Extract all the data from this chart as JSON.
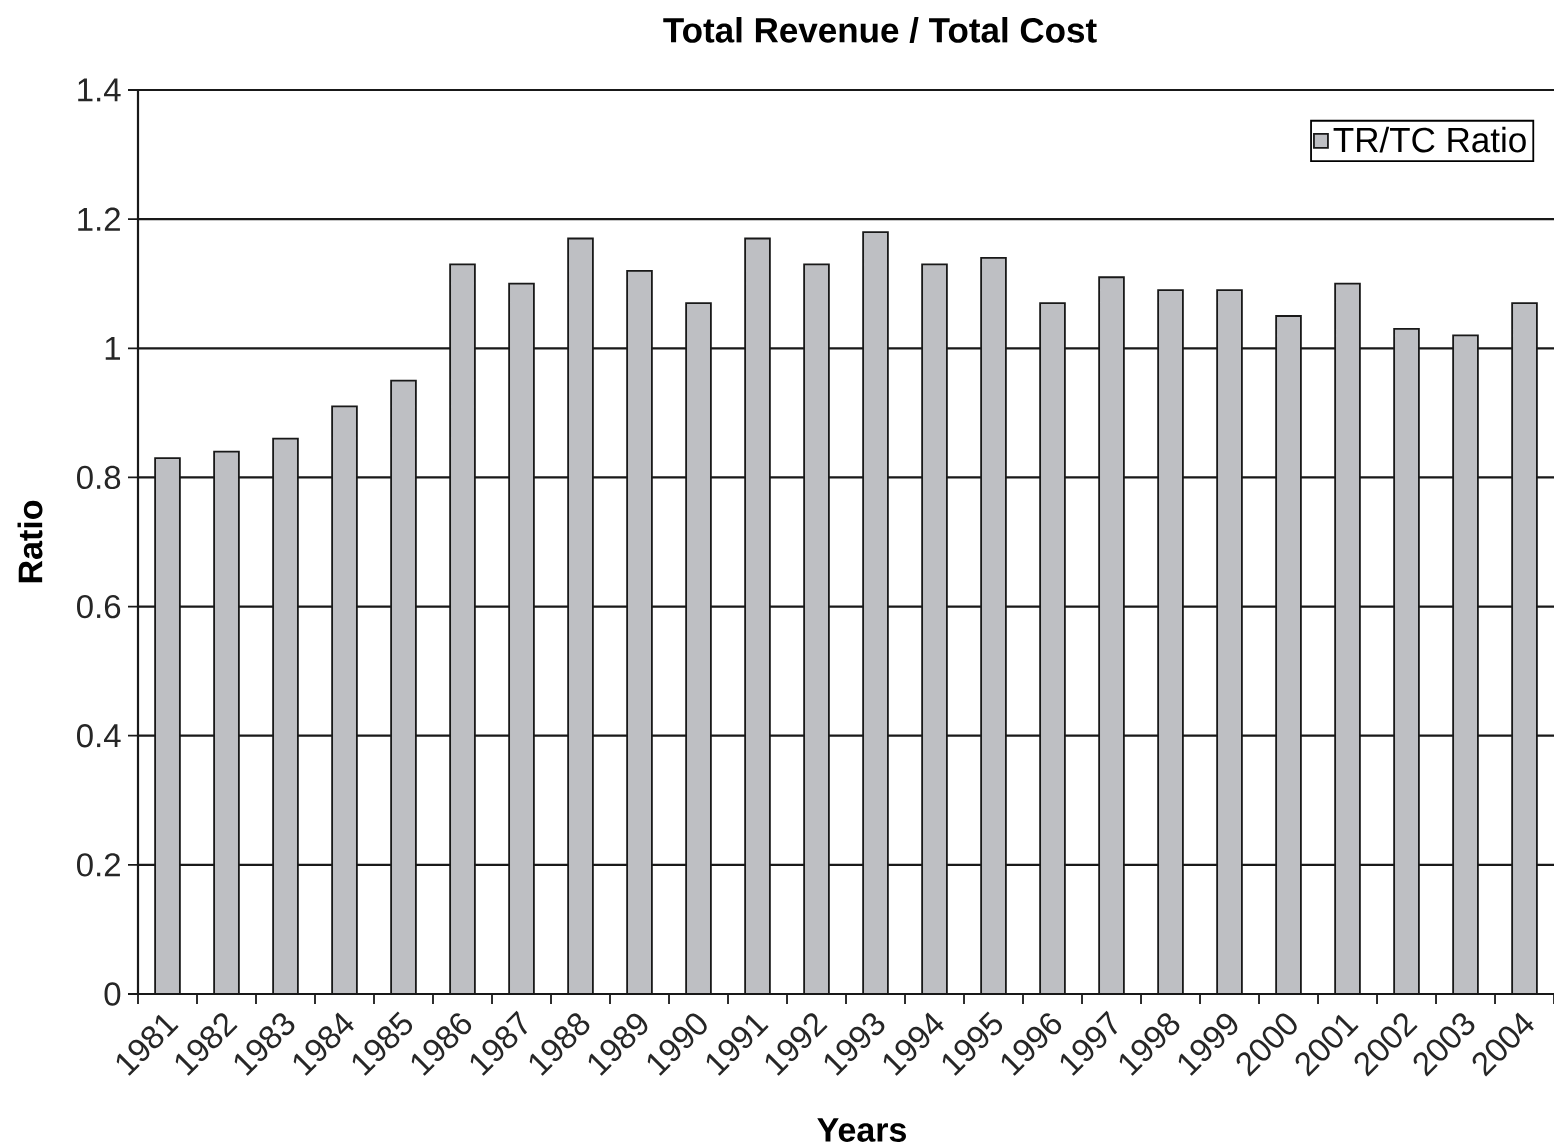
{
  "chart_data": {
    "type": "bar",
    "title": "Total Revenue / Total Cost",
    "xlabel": "Years",
    "ylabel": "Ratio",
    "categories": [
      "1981",
      "1982",
      "1983",
      "1984",
      "1985",
      "1986",
      "1987",
      "1988",
      "1989",
      "1990",
      "1991",
      "1992",
      "1993",
      "1994",
      "1995",
      "1996",
      "1997",
      "1998",
      "1999",
      "2000",
      "2001",
      "2002",
      "2003",
      "2004"
    ],
    "series": [
      {
        "name": "TR/TC Ratio",
        "color": "#bebfc3",
        "values": [
          0.83,
          0.84,
          0.86,
          0.91,
          0.95,
          1.13,
          1.1,
          1.17,
          1.12,
          1.07,
          1.17,
          1.13,
          1.18,
          1.13,
          1.14,
          1.07,
          1.11,
          1.09,
          1.09,
          1.05,
          1.1,
          1.03,
          1.02,
          1.07
        ]
      }
    ],
    "ylim": [
      0,
      1.4
    ],
    "yticks": [
      0,
      0.2,
      0.4,
      0.6,
      0.8,
      1,
      1.2,
      1.4
    ],
    "grid": "y",
    "legend": "top right"
  }
}
